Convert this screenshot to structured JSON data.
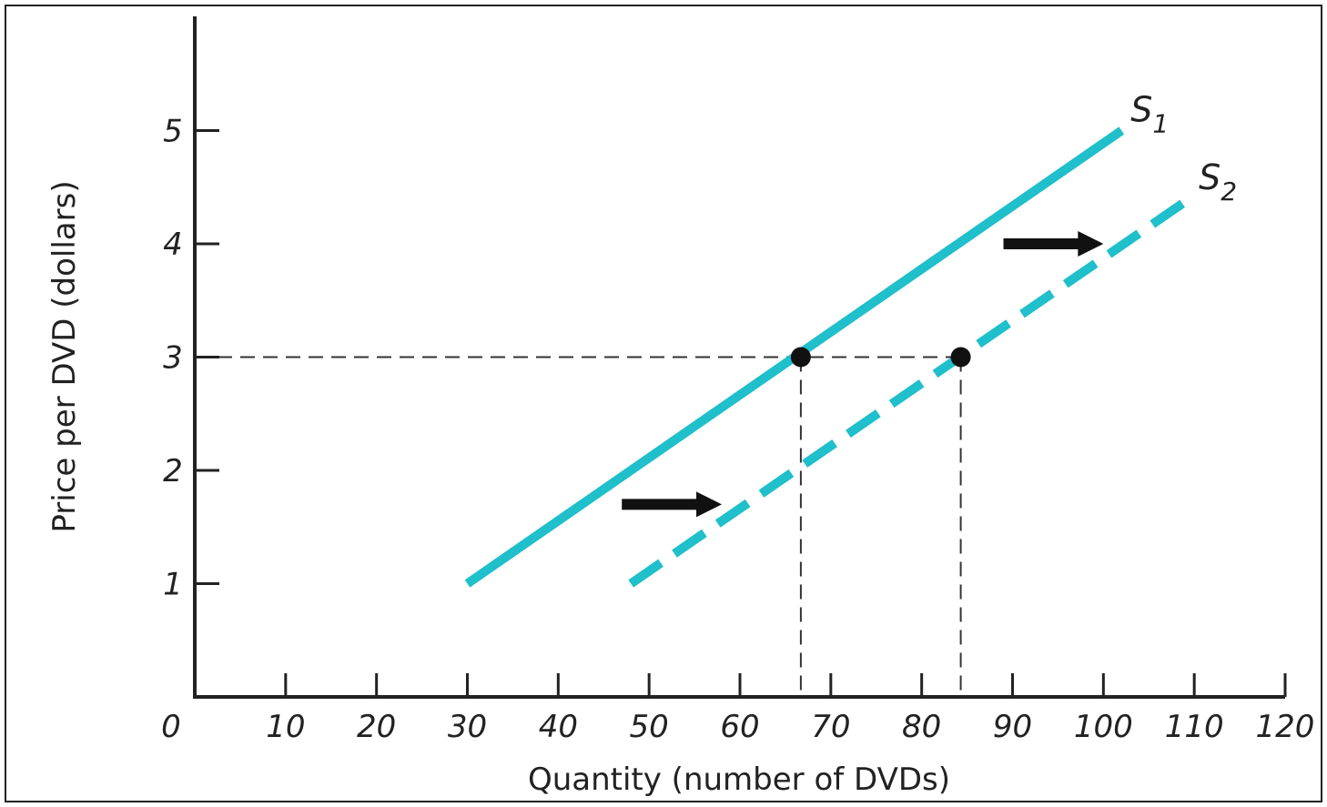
{
  "chart_data": {
    "type": "line",
    "title": "",
    "xlabel": "Quantity (number of DVDs)",
    "ylabel": "Price per DVD (dollars)",
    "xlim": [
      0,
      120
    ],
    "ylim": [
      0,
      6
    ],
    "x_ticks": [
      0,
      10,
      20,
      30,
      40,
      50,
      60,
      70,
      80,
      90,
      100,
      110,
      120
    ],
    "y_ticks": [
      1,
      2,
      3,
      4,
      5
    ],
    "grid": false,
    "line_color": "#1FBFCB",
    "series": [
      {
        "name": "S",
        "sub": "1",
        "style": "solid",
        "points": [
          [
            30,
            1
          ],
          [
            102,
            5
          ]
        ]
      },
      {
        "name": "S",
        "sub": "2",
        "style": "dashed",
        "points": [
          [
            48,
            1
          ],
          [
            109.5,
            4.4
          ]
        ]
      }
    ],
    "reference_points": [
      {
        "x": 66.7,
        "y": 3
      },
      {
        "x": 84.3,
        "y": 3
      }
    ],
    "arrows": [
      {
        "from": [
          47,
          1.7
        ],
        "to": [
          58,
          1.7
        ]
      },
      {
        "from": [
          89,
          4
        ],
        "to": [
          100,
          4
        ]
      }
    ]
  }
}
